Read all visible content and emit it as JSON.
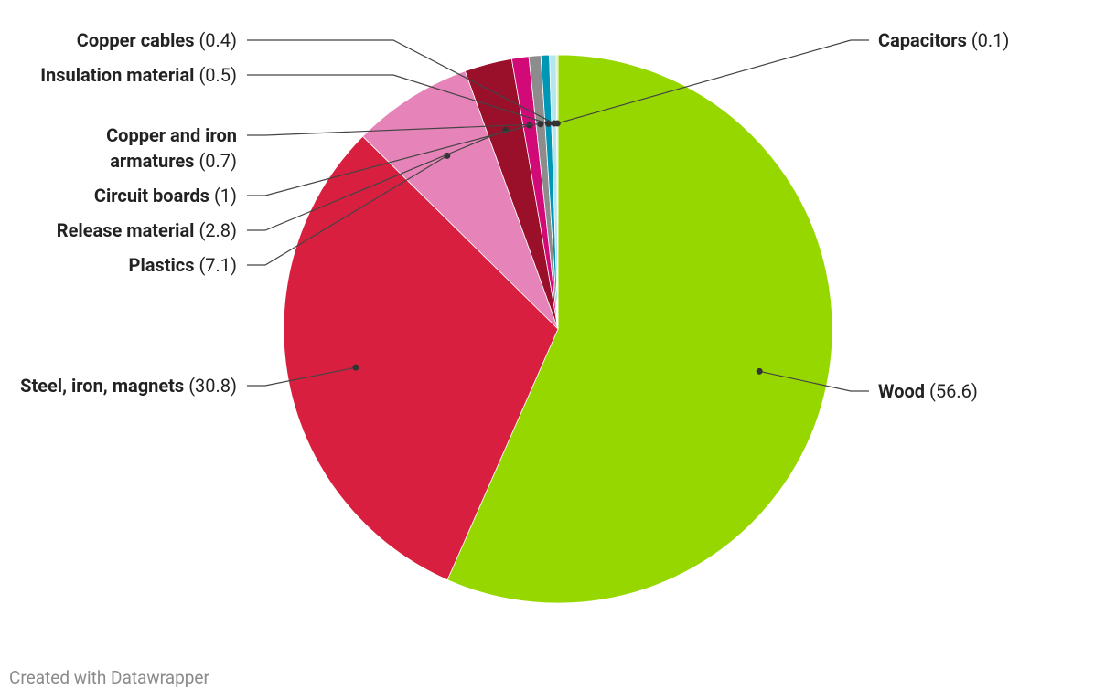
{
  "chart_data": {
    "type": "pie",
    "categories": [
      "Wood",
      "Steel, iron, magnets",
      "Plastics",
      "Release material",
      "Circuit boards",
      "Copper and iron armatures",
      "Insulation material",
      "Copper cables",
      "Capacitors"
    ],
    "values": [
      56.6,
      30.8,
      7.1,
      2.8,
      1,
      0.7,
      0.5,
      0.4,
      0.1
    ],
    "value_labels": [
      "(56.6)",
      "(30.8)",
      "(7.1)",
      "(2.8)",
      "(1)",
      "(0.7)",
      "(0.5)",
      "(0.4)",
      "(0.1)"
    ],
    "colors": [
      "#96d700",
      "#d81f3f",
      "#e683b8",
      "#9a0f2a",
      "#d10a78",
      "#8c8c8c",
      "#0096b5",
      "#b5e5ef",
      "#c8ee90"
    ]
  },
  "footer": "Created with Datawrapper"
}
